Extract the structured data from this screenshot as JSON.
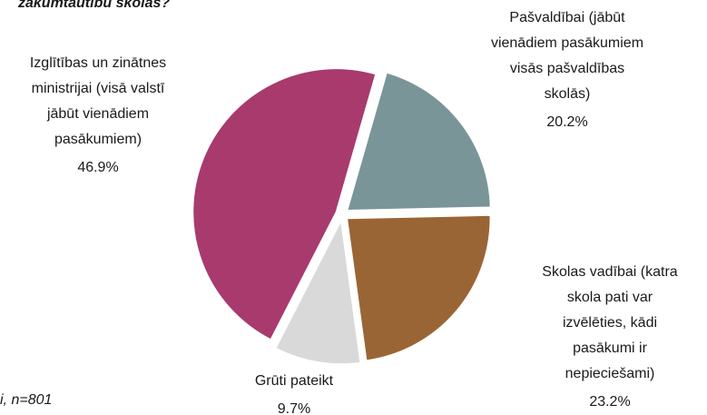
{
  "chart_data": {
    "type": "pie",
    "title": "zākumtautību skolās?",
    "note": "i, n=801",
    "categories": [
      [
        "Pašvaldībai (jābūt",
        "vienādiem pasākumiem",
        "visās pašvaldības",
        "skolās)"
      ],
      [
        "Skolas vadībai (katra",
        "skola pati var",
        "izvēlēties, kādi",
        "pasākumi ir",
        "nepieciešami)"
      ],
      [
        "Grūti pateikt"
      ],
      [
        "Izglītības un zinātnes",
        "ministrijai (visā valstī",
        "jābūt vienādiem",
        "pasākumiem)"
      ]
    ],
    "values": [
      20.2,
      23.2,
      9.7,
      46.9
    ],
    "value_labels": [
      "20.2%",
      "23.2%",
      "9.7%",
      "46.9%"
    ],
    "colors": [
      "#7a9598",
      "#9a6535",
      "#d9d9d9",
      "#a83a6e"
    ]
  }
}
